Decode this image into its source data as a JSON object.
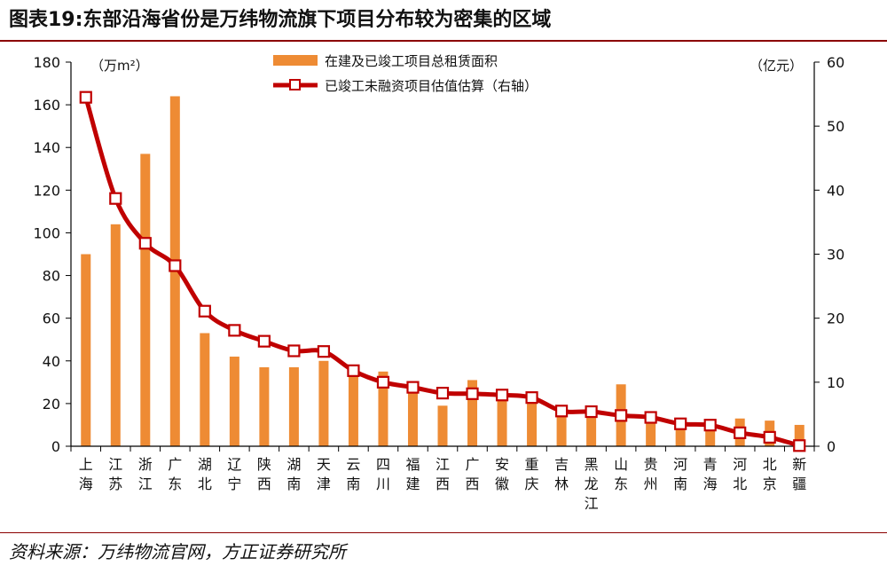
{
  "title": "图表19:东部沿海省份是万纬物流旗下项目分布较为密集的区域",
  "source": "资料来源：万纬物流官网，方正证券研究所",
  "colors": {
    "bar": "#EE8B34",
    "line": "#C00000",
    "rule": "#8B0000",
    "axis": "#000000"
  },
  "chart_data": {
    "type": "bar",
    "categories": [
      "上海",
      "江苏",
      "浙江",
      "广东",
      "湖北",
      "辽宁",
      "陕西",
      "湖南",
      "天津",
      "云南",
      "四川",
      "福建",
      "江西",
      "广西",
      "安徽",
      "重庆",
      "吉林",
      "黑龙江",
      "山东",
      "贵州",
      "河南",
      "青海",
      "河北",
      "北京",
      "新疆"
    ],
    "left_axis": {
      "unit": "（万m²）",
      "ylim": [
        0,
        180
      ],
      "ticks": [
        0,
        20,
        40,
        60,
        80,
        100,
        120,
        140,
        160,
        180
      ]
    },
    "right_axis": {
      "unit": "（亿元）",
      "ylim": [
        0,
        60
      ],
      "ticks": [
        0,
        10,
        20,
        30,
        40,
        50,
        60
      ]
    },
    "series": [
      {
        "name": "在建及已竣工项目总租赁面积",
        "type": "bar",
        "axis": "left",
        "values": [
          90,
          104,
          137,
          164,
          53,
          42,
          37,
          37,
          40,
          35,
          35,
          28,
          19,
          31,
          26,
          22,
          15,
          17,
          29,
          12,
          10,
          11,
          13,
          12,
          10
        ]
      },
      {
        "name": "已竣工未融资项目估值估算（右轴）",
        "type": "line",
        "axis": "right",
        "values": [
          54.5,
          38.7,
          31.7,
          28.2,
          21.1,
          18.1,
          16.4,
          14.9,
          14.8,
          11.8,
          10.0,
          9.2,
          8.3,
          8.2,
          8.0,
          7.6,
          5.5,
          5.4,
          4.8,
          4.5,
          3.5,
          3.3,
          2.1,
          1.4,
          0.1
        ]
      }
    ]
  }
}
